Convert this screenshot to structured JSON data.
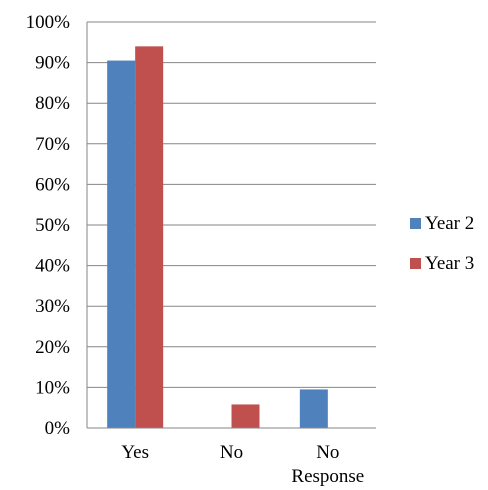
{
  "chart_data": {
    "type": "bar",
    "categories": [
      [
        "Yes"
      ],
      [
        "No"
      ],
      [
        "No",
        "Response"
      ]
    ],
    "series": [
      {
        "name": "Year 2",
        "values": [
          90.5,
          0,
          9.5
        ],
        "color": "#4F81BD"
      },
      {
        "name": "Year 3",
        "values": [
          94,
          5.8,
          0
        ],
        "color": "#C0504D"
      }
    ],
    "ylim": [
      0,
      100
    ],
    "yticks": [
      "0%",
      "10%",
      "20%",
      "30%",
      "40%",
      "50%",
      "60%",
      "70%",
      "80%",
      "90%",
      "100%"
    ],
    "grid": true,
    "legend_position": "right",
    "title": "",
    "xlabel": "",
    "ylabel": ""
  }
}
